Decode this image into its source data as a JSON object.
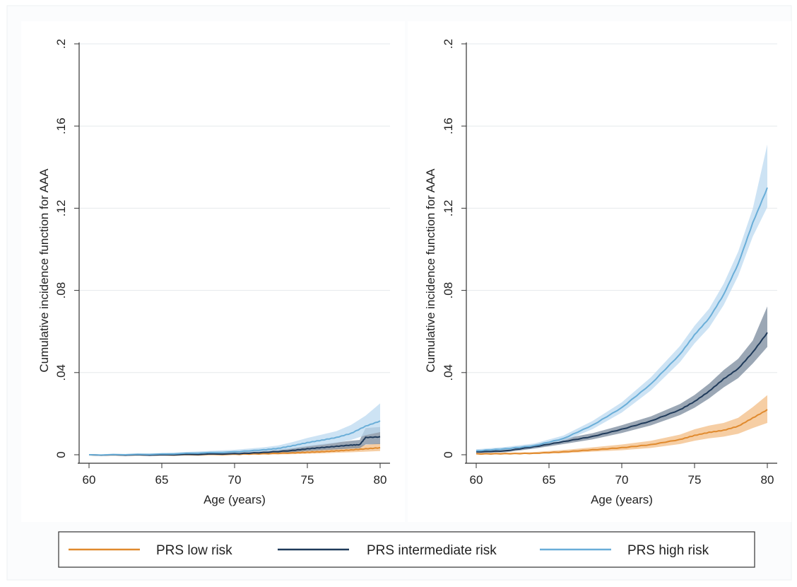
{
  "chart_data": [
    {
      "type": "line",
      "title": "",
      "xlabel": "Age (years)",
      "ylabel": "Cumulative incidence function for AAA",
      "xlim": [
        60,
        80
      ],
      "ylim": [
        0,
        0.2
      ],
      "x_ticks": [
        "60",
        "65",
        "70",
        "75",
        "80"
      ],
      "y_ticks": [
        "0",
        ".04",
        ".08",
        ".12",
        ".16",
        ".2"
      ],
      "grid": true,
      "legend": "bottom",
      "series": [
        {
          "name": "PRS low risk",
          "color": "#e08a2e",
          "band_color": "#f3be86",
          "x": [
            60,
            65,
            70,
            72,
            74,
            75,
            76,
            77,
            78,
            79,
            80
          ],
          "y": [
            0,
            0,
            0.0003,
            0.0006,
            0.001,
            0.0013,
            0.0016,
            0.002,
            0.0024,
            0.003,
            0.0035
          ],
          "lower": [
            0,
            0,
            0,
            0.0001,
            0.0003,
            0.0005,
            0.0007,
            0.001,
            0.0012,
            0.0015,
            0.0018
          ],
          "upper": [
            0,
            0,
            0.0008,
            0.0012,
            0.0018,
            0.0023,
            0.0028,
            0.0033,
            0.004,
            0.0048,
            0.0056
          ]
        },
        {
          "name": "PRS intermediate risk",
          "color": "#1f3a5a",
          "band_color": "#7a8a9c",
          "x": [
            60,
            65,
            70,
            72,
            74,
            75,
            76,
            77,
            78,
            78.6,
            79,
            80
          ],
          "y": [
            0,
            0,
            0.0006,
            0.0012,
            0.0022,
            0.003,
            0.0036,
            0.0042,
            0.0048,
            0.005,
            0.0085,
            0.0088
          ],
          "lower": [
            0,
            0,
            0.0001,
            0.0005,
            0.0012,
            0.0018,
            0.0022,
            0.0026,
            0.003,
            0.0032,
            0.005,
            0.0052
          ],
          "upper": [
            0,
            0,
            0.0012,
            0.002,
            0.0033,
            0.0043,
            0.0052,
            0.006,
            0.0068,
            0.0072,
            0.013,
            0.0135
          ]
        },
        {
          "name": "PRS high risk",
          "color": "#6aaed8",
          "band_color": "#bcdaf0",
          "x": [
            60,
            65,
            70,
            72,
            73,
            74,
            75,
            76,
            77,
            78,
            79,
            80
          ],
          "y": [
            0,
            0.0004,
            0.0015,
            0.0025,
            0.0032,
            0.0045,
            0.006,
            0.0072,
            0.0085,
            0.0105,
            0.014,
            0.0165
          ],
          "lower": [
            0,
            0.0001,
            0.0008,
            0.0015,
            0.002,
            0.003,
            0.004,
            0.0048,
            0.0058,
            0.0072,
            0.0095,
            0.011
          ],
          "upper": [
            0,
            0.0008,
            0.0024,
            0.0036,
            0.0045,
            0.0062,
            0.0082,
            0.0098,
            0.0115,
            0.0145,
            0.019,
            0.025
          ]
        }
      ]
    },
    {
      "type": "line",
      "title": "",
      "xlabel": "Age (years)",
      "ylabel": "Cumulative incidence function for AAA",
      "xlim": [
        60,
        80
      ],
      "ylim": [
        0,
        0.2
      ],
      "x_ticks": [
        "60",
        "65",
        "70",
        "75",
        "80"
      ],
      "y_ticks": [
        "0",
        ".04",
        ".08",
        ".12",
        ".16",
        ".2"
      ],
      "grid": true,
      "legend": "bottom",
      "series": [
        {
          "name": "PRS low risk",
          "color": "#e08a2e",
          "band_color": "#f3be86",
          "x": [
            60,
            62,
            64,
            66,
            68,
            70,
            72,
            74,
            75,
            76,
            77,
            78,
            79,
            80
          ],
          "y": [
            0.0005,
            0.0006,
            0.0008,
            0.0015,
            0.0025,
            0.0035,
            0.005,
            0.0075,
            0.0095,
            0.011,
            0.012,
            0.014,
            0.018,
            0.022
          ],
          "lower": [
            0.0002,
            0.0003,
            0.0004,
            0.0008,
            0.0015,
            0.0022,
            0.0033,
            0.0052,
            0.0068,
            0.008,
            0.0088,
            0.0102,
            0.013,
            0.0155
          ],
          "upper": [
            0.0009,
            0.001,
            0.0013,
            0.0023,
            0.0036,
            0.005,
            0.0068,
            0.0098,
            0.0124,
            0.0142,
            0.0155,
            0.018,
            0.0232,
            0.029
          ]
        },
        {
          "name": "PRS intermediate risk",
          "color": "#1f3a5a",
          "band_color": "#7a8a9c",
          "x": [
            60,
            62,
            64,
            66,
            68,
            70,
            72,
            74,
            75,
            76,
            77,
            78,
            79,
            80
          ],
          "y": [
            0.0015,
            0.002,
            0.004,
            0.0065,
            0.009,
            0.0125,
            0.0165,
            0.022,
            0.026,
            0.031,
            0.037,
            0.042,
            0.05,
            0.0595
          ],
          "lower": [
            0.0008,
            0.0012,
            0.003,
            0.0052,
            0.0075,
            0.0106,
            0.0143,
            0.0193,
            0.0229,
            0.0274,
            0.0328,
            0.0373,
            0.0444,
            0.0525
          ],
          "upper": [
            0.0022,
            0.0028,
            0.005,
            0.0078,
            0.0105,
            0.0144,
            0.0187,
            0.0247,
            0.0291,
            0.0346,
            0.0412,
            0.0467,
            0.0556,
            0.0722
          ]
        },
        {
          "name": "PRS high risk",
          "color": "#6aaed8",
          "band_color": "#bcdaf0",
          "x": [
            60,
            62,
            64,
            66,
            68,
            70,
            72,
            74,
            75,
            76,
            77,
            78,
            79,
            80
          ],
          "y": [
            0.002,
            0.003,
            0.0045,
            0.008,
            0.0145,
            0.023,
            0.0345,
            0.049,
            0.0585,
            0.0665,
            0.078,
            0.093,
            0.113,
            0.13
          ],
          "lower": [
            0.0013,
            0.0022,
            0.0035,
            0.0066,
            0.0125,
            0.0205,
            0.0313,
            0.0451,
            0.0542,
            0.0619,
            0.0728,
            0.0871,
            0.1062,
            0.1205
          ],
          "upper": [
            0.0027,
            0.0038,
            0.0055,
            0.0094,
            0.0165,
            0.0255,
            0.0377,
            0.0529,
            0.0628,
            0.0711,
            0.0832,
            0.0989,
            0.1198,
            0.151
          ]
        }
      ]
    }
  ],
  "legend": {
    "items": [
      {
        "label": "PRS low risk",
        "color": "#e08a2e"
      },
      {
        "label": "PRS intermediate risk",
        "color": "#1f3a5a"
      },
      {
        "label": "PRS high risk",
        "color": "#6aaed8"
      }
    ]
  }
}
